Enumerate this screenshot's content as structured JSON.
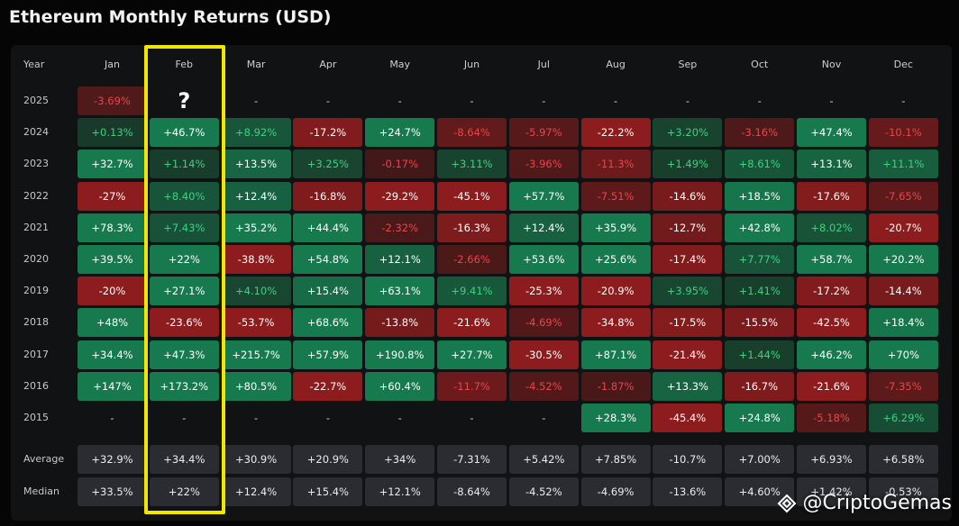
{
  "title": "Ethereum Monthly Returns (USD)",
  "table": {
    "header": [
      "Year",
      "Jan",
      "Feb",
      "Mar",
      "Apr",
      "May",
      "Jun",
      "Jul",
      "Aug",
      "Sep",
      "Oct",
      "Nov",
      "Dec"
    ],
    "rows": [
      [
        "2025",
        "-3.69%",
        "?",
        "-",
        "-",
        "-",
        "-",
        "-",
        "-",
        "-",
        "-",
        "-",
        "-"
      ],
      [
        "2024",
        "+0.13%",
        "+46.7%",
        "+8.92%",
        "-17.2%",
        "+24.7%",
        "-8.64%",
        "-5.97%",
        "-22.2%",
        "+3.20%",
        "-3.16%",
        "+47.4%",
        "-10.1%"
      ],
      [
        "2023",
        "+32.7%",
        "+1.14%",
        "+13.5%",
        "+3.25%",
        "-0.17%",
        "+3.11%",
        "-3.96%",
        "-11.3%",
        "+1.49%",
        "+8.61%",
        "+13.1%",
        "+11.1%"
      ],
      [
        "2022",
        "-27%",
        "+8.40%",
        "+12.4%",
        "-16.8%",
        "-29.2%",
        "-45.1%",
        "+57.7%",
        "-7.51%",
        "-14.6%",
        "+18.5%",
        "-17.6%",
        "-7.65%"
      ],
      [
        "2021",
        "+78.3%",
        "+7.43%",
        "+35.2%",
        "+44.4%",
        "-2.32%",
        "-16.3%",
        "+12.4%",
        "+35.9%",
        "-12.7%",
        "+42.8%",
        "+8.02%",
        "-20.7%"
      ],
      [
        "2020",
        "+39.5%",
        "+22%",
        "-38.8%",
        "+54.8%",
        "+12.1%",
        "-2.66%",
        "+53.6%",
        "+25.6%",
        "-17.4%",
        "+7.77%",
        "+58.7%",
        "+20.2%"
      ],
      [
        "2019",
        "-20%",
        "+27.1%",
        "+4.10%",
        "+15.4%",
        "+63.1%",
        "+9.41%",
        "-25.3%",
        "-20.9%",
        "+3.95%",
        "+1.41%",
        "-17.2%",
        "-14.4%"
      ],
      [
        "2018",
        "+48%",
        "-23.6%",
        "-53.7%",
        "+68.6%",
        "-13.8%",
        "-21.6%",
        "-4.69%",
        "-34.8%",
        "-17.5%",
        "-15.5%",
        "-42.5%",
        "+18.4%"
      ],
      [
        "2017",
        "+34.4%",
        "+47.3%",
        "+215.7%",
        "+57.9%",
        "+190.8%",
        "+27.7%",
        "-30.5%",
        "+87.1%",
        "-21.4%",
        "+1.44%",
        "+46.2%",
        "+70%"
      ],
      [
        "2016",
        "+147%",
        "+173.2%",
        "+80.5%",
        "-22.7%",
        "+60.4%",
        "-11.7%",
        "-4.52%",
        "-1.87%",
        "+13.3%",
        "-16.7%",
        "-21.6%",
        "-7.35%"
      ],
      [
        "2015",
        "-",
        "-",
        "-",
        "-",
        "-",
        "-",
        "-",
        "+28.3%",
        "-45.4%",
        "+24.8%",
        "-5.18%",
        "+6.29%"
      ]
    ],
    "summary": [
      [
        "Average",
        "+32.9%",
        "+34.4%",
        "+30.9%",
        "+20.9%",
        "+34%",
        "-7.31%",
        "+5.42%",
        "+7.85%",
        "-10.7%",
        "+7.00%",
        "+6.93%",
        "+6.58%"
      ],
      [
        "Median",
        "+33.5%",
        "+22%",
        "+12.4%",
        "+15.4%",
        "+12.1%",
        "-8.64%",
        "-4.52%",
        "-4.69%",
        "-13.6%",
        "+4.60%",
        "+1.42%",
        "-0.53%"
      ]
    ]
  },
  "watermark": "@CriptoGemas"
}
